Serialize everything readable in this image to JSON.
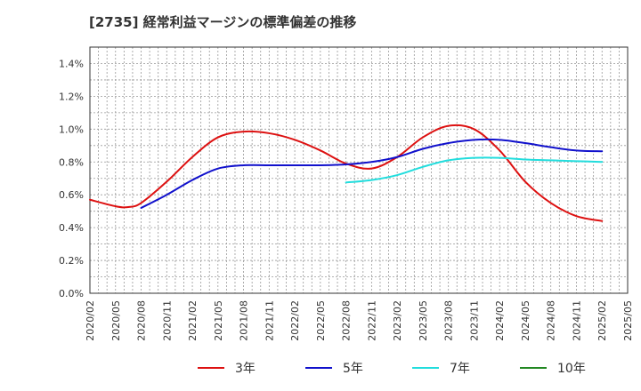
{
  "chart_data": {
    "type": "line",
    "title": "[2735]  経常利益マージンの標準偏差の推移",
    "xlabel": "",
    "ylabel": "",
    "x_ticks": [
      "2020/02",
      "2020/05",
      "2020/08",
      "2020/11",
      "2021/02",
      "2021/05",
      "2021/08",
      "2021/11",
      "2022/02",
      "2022/05",
      "2022/08",
      "2022/11",
      "2023/02",
      "2023/05",
      "2023/08",
      "2023/11",
      "2024/02",
      "2024/05",
      "2024/08",
      "2024/11",
      "2025/02",
      "2025/05"
    ],
    "y_ticks": [
      "0.0%",
      "0.2%",
      "0.4%",
      "0.6%",
      "0.8%",
      "1.0%",
      "1.2%",
      "1.4%"
    ],
    "ylim": [
      0,
      1.5
    ],
    "grid": true,
    "legend_position": "bottom",
    "colors": {
      "s3": "#dd1111",
      "s5": "#1111cc",
      "s7": "#22dddd",
      "s10": "#228822"
    },
    "series": [
      {
        "name": "3年",
        "color": "#dd1111",
        "points": [
          [
            0,
            0.57
          ],
          [
            1,
            0.53
          ],
          [
            1.5,
            0.525
          ],
          [
            2,
            0.55
          ],
          [
            3,
            0.68
          ],
          [
            4,
            0.83
          ],
          [
            5,
            0.95
          ],
          [
            6,
            0.985
          ],
          [
            7,
            0.975
          ],
          [
            8,
            0.935
          ],
          [
            9,
            0.87
          ],
          [
            10,
            0.79
          ],
          [
            11,
            0.76
          ],
          [
            12,
            0.83
          ],
          [
            13,
            0.95
          ],
          [
            14,
            1.02
          ],
          [
            15,
            1.0
          ],
          [
            16,
            0.87
          ],
          [
            17,
            0.68
          ],
          [
            18,
            0.55
          ],
          [
            19,
            0.47
          ],
          [
            20,
            0.44
          ]
        ]
      },
      {
        "name": "5年",
        "color": "#1111cc",
        "points": [
          [
            2,
            0.52
          ],
          [
            3,
            0.6
          ],
          [
            4,
            0.69
          ],
          [
            5,
            0.76
          ],
          [
            6,
            0.78
          ],
          [
            7,
            0.78
          ],
          [
            8,
            0.78
          ],
          [
            9,
            0.78
          ],
          [
            10,
            0.785
          ],
          [
            11,
            0.8
          ],
          [
            12,
            0.83
          ],
          [
            13,
            0.88
          ],
          [
            14,
            0.915
          ],
          [
            15,
            0.935
          ],
          [
            16,
            0.935
          ],
          [
            17,
            0.915
          ],
          [
            18,
            0.89
          ],
          [
            19,
            0.87
          ],
          [
            20,
            0.865
          ]
        ]
      },
      {
        "name": "7年",
        "color": "#22dddd",
        "points": [
          [
            10,
            0.675
          ],
          [
            11,
            0.69
          ],
          [
            12,
            0.72
          ],
          [
            13,
            0.77
          ],
          [
            14,
            0.81
          ],
          [
            15,
            0.825
          ],
          [
            16,
            0.825
          ],
          [
            17,
            0.815
          ],
          [
            18,
            0.81
          ],
          [
            19,
            0.805
          ],
          [
            20,
            0.8
          ]
        ]
      },
      {
        "name": "10年",
        "color": "#228822",
        "points": []
      }
    ]
  }
}
